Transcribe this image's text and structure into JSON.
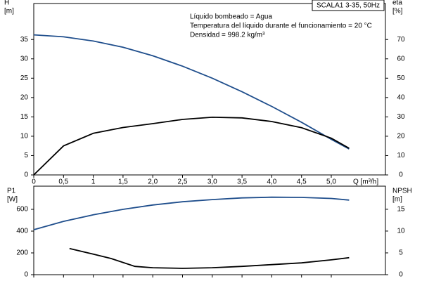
{
  "chart_data": [
    {
      "type": "line",
      "title": "SCALA1 3-35, 50Hz",
      "annotations": [
        "Líquido bombeado = Agua",
        "Temperatura del líquido durante el funcionamiento = 20 °C",
        "Densidad = 998.2 kg/m³"
      ],
      "ylabel": [
        "H",
        "[m]"
      ],
      "y2label": [
        "eta",
        "[%]"
      ],
      "xlabel": "Q [m³/h]",
      "xlim": [
        0,
        5.91
      ],
      "ylim": [
        0,
        44.3
      ],
      "y2lim": [
        0,
        88.6
      ],
      "xticks": [
        0,
        {
          "value": 0.5,
          "label": "0,5"
        },
        1,
        {
          "value": 1.5,
          "label": "1,5"
        },
        {
          "value": 2,
          "label": "2,0"
        },
        {
          "value": 2.5,
          "label": "2,5"
        },
        {
          "value": 3,
          "label": "3,0"
        },
        {
          "value": 3.5,
          "label": "3,5"
        },
        {
          "value": 4,
          "label": "4,0"
        },
        {
          "value": 4.5,
          "label": "4,5"
        },
        {
          "value": 5,
          "label": "5,0"
        }
      ],
      "yticks": [
        0,
        5,
        10,
        15,
        20,
        25,
        30,
        35
      ],
      "y2ticks": [
        0,
        10,
        20,
        30,
        40,
        50,
        60,
        70
      ],
      "series": [
        {
          "color": "#1f4e8c",
          "x": [
            0,
            0.5,
            1,
            1.5,
            2,
            2.5,
            3,
            3.5,
            4,
            4.5,
            5,
            5.3
          ],
          "values": [
            36.2,
            35.7,
            34.6,
            33,
            30.8,
            28.1,
            25,
            21.5,
            17.7,
            13.6,
            9.2,
            6.7
          ]
        },
        {
          "color": "#000000",
          "axis": "y2",
          "x": [
            0,
            0.5,
            1,
            1.5,
            2,
            2.5,
            3,
            3.5,
            4,
            4.5,
            5,
            5.3
          ],
          "values": [
            0,
            15,
            21.5,
            24.5,
            26.5,
            28.7,
            29.8,
            29.5,
            27.6,
            24.4,
            19,
            13.8
          ]
        }
      ]
    },
    {
      "type": "line",
      "ylabel": [
        "P1",
        "[W]"
      ],
      "y2label": [
        "NPSH",
        "[m]"
      ],
      "xlim": [
        0,
        5.91
      ],
      "ylim": [
        0,
        813
      ],
      "y2lim": [
        0,
        20.3
      ],
      "xticks": [
        0,
        0.5,
        1,
        1.5,
        2,
        2.5,
        3,
        3.5,
        4,
        4.5,
        5
      ],
      "yticks": [
        0,
        200,
        400,
        600
      ],
      "y2ticks": [
        0,
        5,
        10,
        15
      ],
      "series": [
        {
          "color": "#1f4e8c",
          "x": [
            0,
            0.5,
            1,
            1.5,
            2,
            2.5,
            3,
            3.5,
            4,
            4.5,
            5,
            5.3
          ],
          "values": [
            413,
            490,
            550,
            600,
            640,
            670,
            690,
            705,
            712,
            710,
            700,
            685
          ]
        },
        {
          "color": "#000000",
          "axis": "y2",
          "x": [
            0.6,
            1,
            1.3,
            1.7,
            2,
            2.5,
            3,
            3.5,
            4,
            4.5,
            5,
            5.3
          ],
          "values": [
            6,
            4.7,
            3.7,
            1.9,
            1.6,
            1.45,
            1.6,
            1.9,
            2.3,
            2.7,
            3.4,
            3.9
          ]
        }
      ]
    }
  ]
}
